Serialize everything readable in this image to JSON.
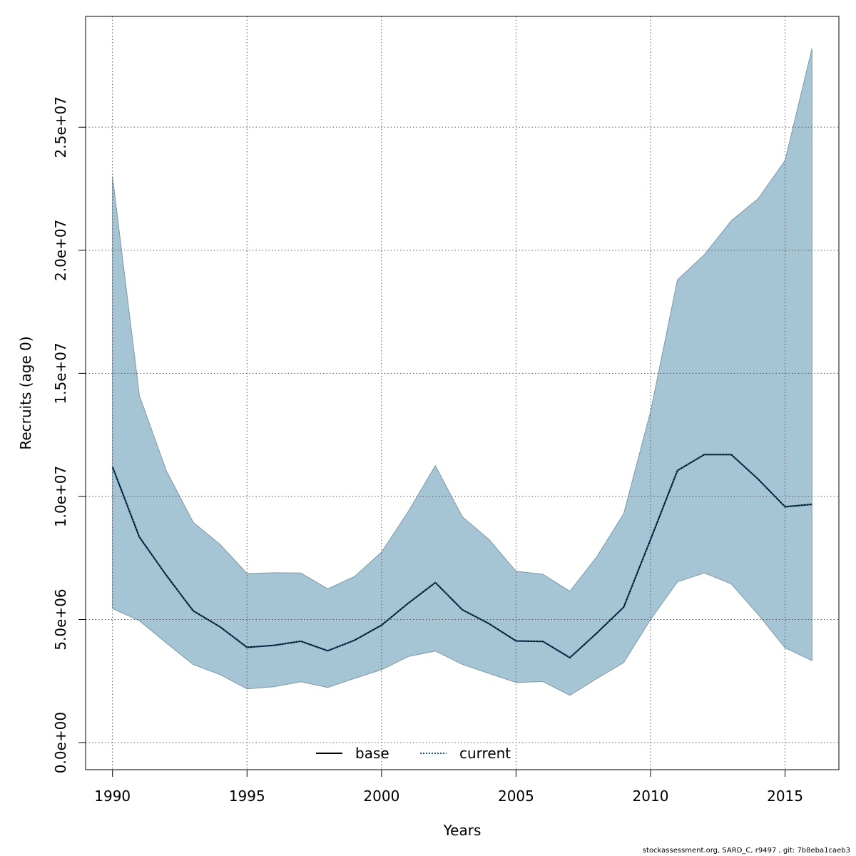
{
  "chart_data": {
    "type": "area",
    "xlabel": "Years",
    "ylabel": "Recruits (age 0)",
    "xlim": [
      1989,
      2017
    ],
    "ylim": [
      -1100000,
      29500000
    ],
    "x_ticks": [
      1990,
      1995,
      2000,
      2005,
      2010,
      2015
    ],
    "x_tick_labels": [
      "1990",
      "1995",
      "2000",
      "2005",
      "2010",
      "2015"
    ],
    "y_ticks": [
      0,
      5000000,
      10000000,
      15000000,
      20000000,
      25000000
    ],
    "y_tick_labels": [
      "0.0e+00",
      "5.0e+06",
      "1.0e+07",
      "1.5e+07",
      "2.0e+07",
      "2.5e+07"
    ],
    "grid": true,
    "legend_placement": "bottom-center",
    "colors": {
      "band_fill": "#a5c4d4",
      "band_edge": "#7f98a6",
      "base_line": "#000000",
      "current_line": "#0a5a8a",
      "grid": "#555555"
    },
    "x": [
      1990,
      1991,
      1992,
      1993,
      1994,
      1995,
      1996,
      1997,
      1998,
      1999,
      2000,
      2001,
      2002,
      2003,
      2004,
      2005,
      2006,
      2007,
      2008,
      2009,
      2010,
      2011,
      2012,
      2013,
      2014,
      2015,
      2016
    ],
    "series": [
      {
        "name": "base",
        "style": "solid",
        "values": [
          11200000,
          8350000,
          6800000,
          5350000,
          4700000,
          3870000,
          3950000,
          4120000,
          3730000,
          4160000,
          4770000,
          5670000,
          6500000,
          5400000,
          4830000,
          4130000,
          4110000,
          3450000,
          4450000,
          5500000,
          8250000,
          11050000,
          11700000,
          11700000,
          10700000,
          9580000,
          9680000
        ]
      },
      {
        "name": "current",
        "style": "dotted",
        "values": [
          11200000,
          8350000,
          6800000,
          5350000,
          4700000,
          3870000,
          3950000,
          4120000,
          3730000,
          4160000,
          4770000,
          5670000,
          6500000,
          5400000,
          4830000,
          4130000,
          4110000,
          3450000,
          4450000,
          5500000,
          8250000,
          11050000,
          11700000,
          11700000,
          10700000,
          9580000,
          9680000
        ]
      }
    ],
    "band": {
      "upper": [
        23000000,
        14100000,
        11050000,
        8950000,
        8050000,
        6870000,
        6900000,
        6890000,
        6250000,
        6750000,
        7740000,
        9400000,
        11250000,
        9180000,
        8250000,
        6960000,
        6840000,
        6150000,
        7550000,
        9300000,
        13450000,
        18800000,
        19820000,
        21200000,
        22100000,
        23650000,
        28200000
      ],
      "lower": [
        5450000,
        4950000,
        4050000,
        3170000,
        2760000,
        2180000,
        2270000,
        2470000,
        2240000,
        2610000,
        2960000,
        3500000,
        3720000,
        3180000,
        2810000,
        2440000,
        2480000,
        1920000,
        2600000,
        3250000,
        5000000,
        6530000,
        6890000,
        6450000,
        5200000,
        3850000,
        3330000
      ]
    }
  },
  "legend": {
    "items": [
      {
        "label": "base",
        "style": "solid"
      },
      {
        "label": "current",
        "style": "dotted"
      }
    ]
  },
  "footer": {
    "text": "stockassessment.org, SARD_C, r9497 , git: 7b8eba1caeb3"
  }
}
